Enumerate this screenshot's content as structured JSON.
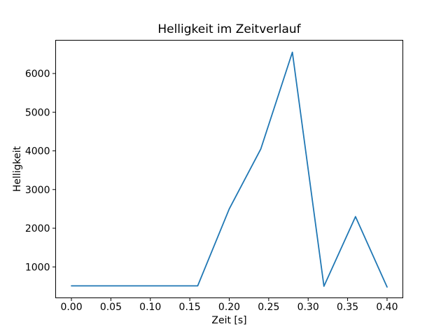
{
  "figure": {
    "kind": "matplotlib-line-plot",
    "background": "#ffffff"
  },
  "chart_data": {
    "type": "line",
    "title": "Helligkeit im Zeitverlauf",
    "xlabel": "Zeit [s]",
    "ylabel": "Helligkeit",
    "x": [
      0.0,
      0.04,
      0.08,
      0.12,
      0.16,
      0.2,
      0.24,
      0.28,
      0.32,
      0.36,
      0.4
    ],
    "y": [
      510,
      510,
      510,
      510,
      510,
      2500,
      4050,
      6550,
      500,
      2300,
      480
    ],
    "x_ticks": [
      0.0,
      0.05,
      0.1,
      0.15,
      0.2,
      0.25,
      0.3,
      0.35,
      0.4
    ],
    "x_tick_labels": [
      "0.00",
      "0.05",
      "0.10",
      "0.15",
      "0.20",
      "0.25",
      "0.30",
      "0.35",
      "0.40"
    ],
    "y_ticks": [
      1000,
      2000,
      3000,
      4000,
      5000,
      6000
    ],
    "y_tick_labels": [
      "1000",
      "2000",
      "3000",
      "4000",
      "5000",
      "6000"
    ],
    "xlim": [
      -0.02,
      0.42
    ],
    "ylim": [
      200,
      6860
    ],
    "grid": false,
    "legend": null,
    "line_color": "#1f77b4",
    "spine_color": "#000000",
    "text_color": "#000000"
  }
}
